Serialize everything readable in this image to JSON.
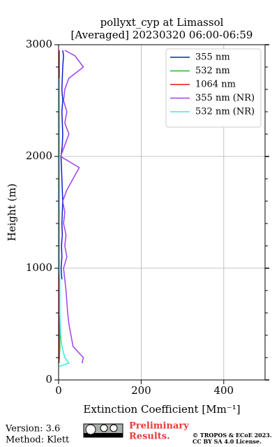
{
  "chart_data": {
    "type": "line",
    "title": [
      "pollyxt_cyp at Limassol",
      "[Averaged] 20230320 06:00-06:59"
    ],
    "xlabel": "Extinction Coefficient [Mm⁻¹]",
    "ylabel": "Height (m)",
    "xlim": [
      0,
      500
    ],
    "xticks": [
      0,
      200,
      400
    ],
    "ylim": [
      0,
      3000
    ],
    "yticks": [
      0,
      1000,
      2000,
      3000
    ],
    "yminorticks": [
      200,
      400,
      600,
      800,
      1200,
      1400,
      1600,
      1800,
      2200,
      2400,
      2600,
      2800
    ],
    "grid": true,
    "legend": "upper right",
    "y": [
      120,
      150,
      200,
      300,
      400,
      500,
      600,
      700,
      800,
      900,
      1000,
      1100,
      1200,
      1300,
      1400,
      1500,
      1600,
      1700,
      1800,
      1900,
      2000,
      2100,
      2200,
      2300,
      2400,
      2500,
      2600,
      2700,
      2800,
      2900,
      2950
    ],
    "series": [
      {
        "name": "355 nm",
        "color": "#0a1fd6",
        "values": [
          null,
          null,
          null,
          null,
          null,
          null,
          null,
          null,
          null,
          8,
          6,
          8,
          7,
          9,
          8,
          9,
          10,
          9,
          8,
          7,
          6,
          9,
          10,
          9,
          8,
          10,
          8,
          9,
          10,
          12,
          10
        ]
      },
      {
        "name": "532 nm",
        "color": "#22b322",
        "values": [
          null,
          1,
          2,
          3,
          3,
          3,
          3,
          3,
          3,
          2,
          2,
          2,
          2,
          2,
          2,
          2,
          2,
          2,
          2,
          2,
          2,
          2,
          2,
          2,
          2,
          2,
          2,
          2,
          2,
          2,
          2
        ]
      },
      {
        "name": "1064 nm",
        "color": "#e01b1b",
        "values": [
          null,
          0.5,
          0.5,
          0.5,
          0.5,
          0.5,
          0.5,
          0.5,
          0.5,
          0.5,
          0.5,
          0.5,
          0.5,
          0.5,
          0.5,
          0.5,
          0.5,
          0.5,
          0.5,
          0.5,
          0.5,
          0.5,
          0.5,
          0.5,
          0.5,
          0.5,
          0.5,
          0.5,
          0.5,
          0.5,
          0.5
        ]
      },
      {
        "name": "355 nm (NR)",
        "color": "#a040f0",
        "values": [
          null,
          57,
          60,
          35,
          30,
          25,
          22,
          20,
          18,
          15,
          12,
          20,
          15,
          18,
          12,
          15,
          10,
          20,
          35,
          50,
          5,
          15,
          25,
          15,
          20,
          12,
          15,
          25,
          60,
          40,
          15
        ]
      },
      {
        "name": "532 nm (NR)",
        "color": "#40e8d8",
        "values": [
          0,
          25,
          15,
          8,
          5,
          4,
          3,
          3,
          3,
          3,
          2,
          2,
          2,
          2,
          2,
          2,
          2,
          2,
          2,
          2,
          2,
          2,
          2,
          2,
          2,
          2,
          2,
          2,
          null,
          null,
          null
        ]
      }
    ]
  },
  "footer": {
    "version": "Version: 3.6",
    "method": "Method: Klett",
    "status": [
      "Preliminary",
      "Results."
    ],
    "license": [
      "© TROPOS & ECoE 2023.",
      "CC BY SA 4.0 License."
    ]
  }
}
